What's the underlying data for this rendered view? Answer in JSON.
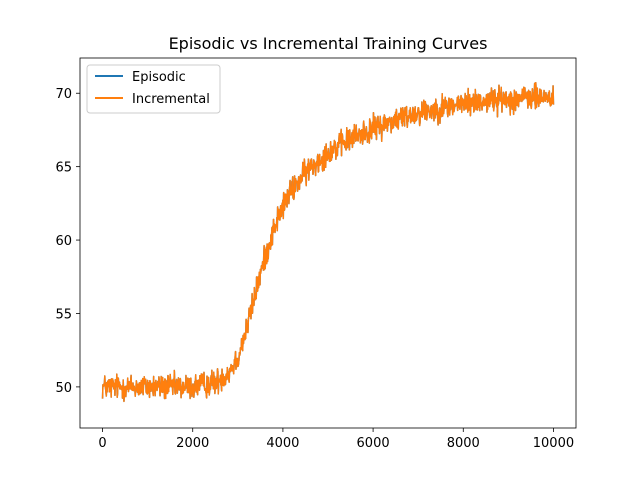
{
  "chart_data": {
    "type": "line",
    "title": "Episodic vs Incremental Training Curves",
    "xlabel": "",
    "ylabel": "",
    "xlim": [
      -500,
      10500
    ],
    "ylim": [
      47.2,
      72.4
    ],
    "x_ticks": [
      0,
      2000,
      4000,
      6000,
      8000,
      10000
    ],
    "x_tick_labels": [
      "0",
      "2000",
      "4000",
      "6000",
      "8000",
      "10000"
    ],
    "y_ticks": [
      50,
      55,
      60,
      65,
      70
    ],
    "y_tick_labels": [
      "50",
      "55",
      "60",
      "65",
      "70"
    ],
    "grid": false,
    "legend": "top-left",
    "x_range": [
      0,
      10000
    ],
    "series": [
      {
        "name": "Episodic",
        "color": "#1f77b4",
        "trend": [
          [
            0,
            50.0
          ],
          [
            1000,
            50.0
          ],
          [
            2000,
            50.0
          ],
          [
            2500,
            50.3
          ],
          [
            2800,
            51.0
          ],
          [
            3000,
            52.0
          ],
          [
            3200,
            54.0
          ],
          [
            3400,
            56.5
          ],
          [
            3600,
            58.8
          ],
          [
            3800,
            60.8
          ],
          [
            4000,
            62.3
          ],
          [
            4200,
            63.4
          ],
          [
            4500,
            64.6
          ],
          [
            5000,
            66.0
          ],
          [
            5500,
            66.9
          ],
          [
            6000,
            67.6
          ],
          [
            6500,
            68.2
          ],
          [
            7000,
            68.7
          ],
          [
            7500,
            69.0
          ],
          [
            8000,
            69.3
          ],
          [
            8500,
            69.5
          ],
          [
            9000,
            69.6
          ],
          [
            9500,
            69.7
          ],
          [
            10000,
            69.7
          ]
        ]
      },
      {
        "name": "Incremental",
        "color": "#ff7f0e",
        "trend": [
          [
            0,
            50.0
          ],
          [
            1000,
            50.0
          ],
          [
            2000,
            50.0
          ],
          [
            2500,
            50.3
          ],
          [
            2800,
            51.0
          ],
          [
            3000,
            52.0
          ],
          [
            3200,
            54.0
          ],
          [
            3400,
            56.5
          ],
          [
            3600,
            58.8
          ],
          [
            3800,
            60.8
          ],
          [
            4000,
            62.3
          ],
          [
            4200,
            63.4
          ],
          [
            4500,
            64.6
          ],
          [
            5000,
            66.0
          ],
          [
            5500,
            66.9
          ],
          [
            6000,
            67.6
          ],
          [
            6500,
            68.2
          ],
          [
            7000,
            68.7
          ],
          [
            7500,
            69.0
          ],
          [
            8000,
            69.3
          ],
          [
            8500,
            69.5
          ],
          [
            9000,
            69.6
          ],
          [
            9500,
            69.7
          ],
          [
            10000,
            69.7
          ]
        ]
      }
    ]
  }
}
